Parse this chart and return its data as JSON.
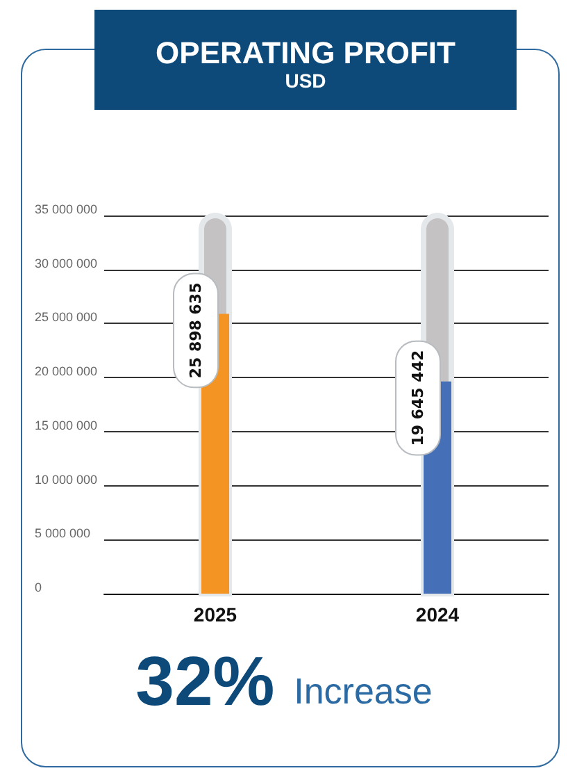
{
  "chart_data": {
    "type": "bar",
    "title": "OPERATING PROFIT",
    "subtitle": "USD",
    "categories": [
      "2025",
      "2024"
    ],
    "values": [
      25898635,
      19645442
    ],
    "colors": [
      "#f39423",
      "#456fb6"
    ],
    "value_labels": [
      "25 898 635",
      "19 645 442"
    ],
    "ylim": [
      0,
      35000000
    ],
    "yticks": [
      {
        "value": 0,
        "label": "0"
      },
      {
        "value": 5000000,
        "label": "5 000 000"
      },
      {
        "value": 10000000,
        "label": "10 000 000"
      },
      {
        "value": 15000000,
        "label": "15 000 000"
      },
      {
        "value": 20000000,
        "label": "20 000 000"
      },
      {
        "value": 25000000,
        "label": "25 000 000"
      },
      {
        "value": 30000000,
        "label": "30 000 000"
      },
      {
        "value": 35000000,
        "label": "35 000 000"
      }
    ],
    "grid": "y",
    "annotations": [
      "32% Increase"
    ]
  }
}
